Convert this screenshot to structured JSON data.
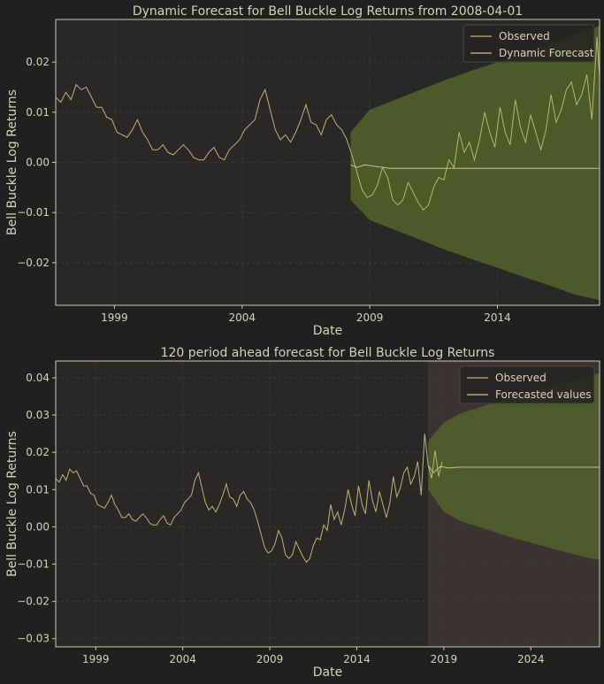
{
  "theme": {
    "background": "#1f2020",
    "axes_bg": "#2a2827",
    "text": "#d6d2b8",
    "grid": "#3f3c38",
    "spine": "#cfcab0",
    "observed_color": "#b8b478",
    "forecast_line_color": "#c8c296",
    "ci_color": "#586a2a",
    "ci_opacity": 0.75,
    "shade_color": "#3a3332"
  },
  "chart_data": [
    {
      "type": "line",
      "title": "Dynamic Forecast for Bell Buckle Log Returns from 2008-04-01",
      "xlabel": "Date",
      "ylabel": "Bell Buckle Log Returns",
      "xlim": [
        1996.7,
        2018.0
      ],
      "ylim": [
        -0.0285,
        0.0285
      ],
      "xticks": [
        1999,
        2004,
        2009,
        2014
      ],
      "xtick_labels": [
        "1999",
        "2004",
        "2009",
        "2014"
      ],
      "yticks": [
        -0.02,
        -0.01,
        0.0,
        0.01,
        0.02
      ],
      "ytick_labels": [
        "−0.02",
        "−0.01",
        "0.00",
        "0.01",
        "0.02"
      ],
      "grid": true,
      "legend_placement": "top-right",
      "legend": [
        "Observed",
        "Dynamic Forecast"
      ],
      "observed": {
        "name": "Observed",
        "points": [
          [
            1996.7,
            0.013
          ],
          [
            1996.9,
            0.012
          ],
          [
            1997.1,
            0.014
          ],
          [
            1997.3,
            0.0125
          ],
          [
            1997.5,
            0.0155
          ],
          [
            1997.7,
            0.0145
          ],
          [
            1997.9,
            0.015
          ],
          [
            1998.1,
            0.013
          ],
          [
            1998.3,
            0.011
          ],
          [
            1998.5,
            0.011
          ],
          [
            1998.7,
            0.009
          ],
          [
            1998.9,
            0.0085
          ],
          [
            1999.1,
            0.006
          ],
          [
            1999.3,
            0.0055
          ],
          [
            1999.5,
            0.005
          ],
          [
            1999.7,
            0.0065
          ],
          [
            1999.9,
            0.0085
          ],
          [
            2000.1,
            0.006
          ],
          [
            2000.3,
            0.0045
          ],
          [
            2000.5,
            0.0025
          ],
          [
            2000.7,
            0.0025
          ],
          [
            2000.9,
            0.0035
          ],
          [
            2001.1,
            0.002
          ],
          [
            2001.3,
            0.0015
          ],
          [
            2001.5,
            0.0025
          ],
          [
            2001.7,
            0.0035
          ],
          [
            2001.9,
            0.0025
          ],
          [
            2002.1,
            0.001
          ],
          [
            2002.3,
            0.0005
          ],
          [
            2002.5,
            0.0005
          ],
          [
            2002.7,
            0.002
          ],
          [
            2002.9,
            0.003
          ],
          [
            2003.1,
            0.001
          ],
          [
            2003.3,
            0.0005
          ],
          [
            2003.5,
            0.0025
          ],
          [
            2003.7,
            0.0035
          ],
          [
            2003.9,
            0.0045
          ],
          [
            2004.1,
            0.0065
          ],
          [
            2004.3,
            0.0075
          ],
          [
            2004.5,
            0.0085
          ],
          [
            2004.7,
            0.0125
          ],
          [
            2004.9,
            0.0145
          ],
          [
            2005.1,
            0.0105
          ],
          [
            2005.3,
            0.0065
          ],
          [
            2005.5,
            0.0045
          ],
          [
            2005.7,
            0.0055
          ],
          [
            2005.9,
            0.004
          ],
          [
            2006.1,
            0.006
          ],
          [
            2006.3,
            0.0085
          ],
          [
            2006.5,
            0.0115
          ],
          [
            2006.7,
            0.008
          ],
          [
            2006.9,
            0.0075
          ],
          [
            2007.1,
            0.0055
          ],
          [
            2007.3,
            0.0085
          ],
          [
            2007.5,
            0.0095
          ],
          [
            2007.7,
            0.0075
          ],
          [
            2007.9,
            0.0065
          ],
          [
            2008.1,
            0.0045
          ],
          [
            2008.3,
            0.0015
          ],
          [
            2008.5,
            -0.002
          ],
          [
            2008.7,
            -0.0055
          ],
          [
            2008.9,
            -0.007
          ],
          [
            2009.1,
            -0.0065
          ],
          [
            2009.3,
            -0.0045
          ],
          [
            2009.5,
            -0.001
          ],
          [
            2009.7,
            -0.003
          ],
          [
            2009.9,
            -0.0075
          ],
          [
            2010.1,
            -0.0085
          ],
          [
            2010.3,
            -0.0075
          ],
          [
            2010.5,
            -0.004
          ],
          [
            2010.7,
            -0.006
          ],
          [
            2010.9,
            -0.008
          ],
          [
            2011.1,
            -0.0095
          ],
          [
            2011.3,
            -0.0085
          ],
          [
            2011.5,
            -0.005
          ],
          [
            2011.7,
            -0.003
          ],
          [
            2011.9,
            -0.0035
          ],
          [
            2012.1,
            0.0005
          ],
          [
            2012.3,
            -0.001
          ],
          [
            2012.5,
            0.006
          ],
          [
            2012.7,
            0.002
          ],
          [
            2012.9,
            0.004
          ],
          [
            2013.1,
            0.0005
          ],
          [
            2013.3,
            0.0045
          ],
          [
            2013.5,
            0.01
          ],
          [
            2013.7,
            0.006
          ],
          [
            2013.9,
            0.003
          ],
          [
            2014.1,
            0.011
          ],
          [
            2014.3,
            0.006
          ],
          [
            2014.5,
            0.0035
          ],
          [
            2014.7,
            0.0125
          ],
          [
            2014.9,
            0.007
          ],
          [
            2015.1,
            0.004
          ],
          [
            2015.3,
            0.0095
          ],
          [
            2015.5,
            0.006
          ],
          [
            2015.7,
            0.0025
          ],
          [
            2015.9,
            0.0065
          ],
          [
            2016.1,
            0.0135
          ],
          [
            2016.3,
            0.008
          ],
          [
            2016.5,
            0.0105
          ],
          [
            2016.7,
            0.0145
          ],
          [
            2016.9,
            0.016
          ],
          [
            2017.1,
            0.0115
          ],
          [
            2017.3,
            0.0135
          ],
          [
            2017.5,
            0.0175
          ],
          [
            2017.7,
            0.0085
          ],
          [
            2017.9,
            0.025
          ],
          [
            2018.0,
            0.017
          ]
        ]
      },
      "forecast": {
        "name": "Dynamic Forecast",
        "start": 2008.25,
        "points": [
          [
            2008.25,
            -0.0005
          ],
          [
            2008.5,
            -0.001
          ],
          [
            2008.8,
            -0.0005
          ],
          [
            2009.2,
            -0.0008
          ],
          [
            2009.8,
            -0.0012
          ],
          [
            2010.5,
            -0.0012
          ],
          [
            2018.0,
            -0.0012
          ]
        ]
      },
      "confidence_interval": {
        "x": [
          2008.25,
          2009.0,
          2010.0,
          2011.0,
          2012.0,
          2013.0,
          2014.0,
          2015.0,
          2016.0,
          2017.0,
          2018.0
        ],
        "upper": [
          0.006,
          0.0105,
          0.0125,
          0.0145,
          0.0165,
          0.0183,
          0.02,
          0.0218,
          0.0235,
          0.0255,
          0.0272
        ],
        "lower": [
          -0.0075,
          -0.0115,
          -0.0135,
          -0.0155,
          -0.0175,
          -0.0193,
          -0.021,
          -0.0228,
          -0.0245,
          -0.0263,
          -0.0275
        ]
      }
    },
    {
      "type": "line",
      "title": "120 period ahead forecast for Bell Buckle Log Returns",
      "xlabel": "Date",
      "ylabel": "Bell Buckle Log Returns",
      "xlim": [
        1996.7,
        2027.95
      ],
      "ylim": [
        -0.0322,
        0.0445
      ],
      "xticks": [
        1999,
        2004,
        2009,
        2014,
        2019,
        2024
      ],
      "xtick_labels": [
        "1999",
        "2004",
        "2009",
        "2014",
        "2019",
        "2024"
      ],
      "yticks": [
        -0.03,
        -0.02,
        -0.01,
        0.0,
        0.01,
        0.02,
        0.03,
        0.04
      ],
      "ytick_labels": [
        "−0.03",
        "−0.02",
        "−0.01",
        "0.00",
        "0.01",
        "0.02",
        "0.03",
        "0.04"
      ],
      "grid": true,
      "legend_placement": "top-right",
      "legend": [
        "Observed",
        "Forecasted values"
      ],
      "shaded_region": [
        2018.1,
        2027.95
      ],
      "observed": {
        "name": "Observed",
        "points": [
          [
            1996.7,
            0.013
          ],
          [
            1996.9,
            0.012
          ],
          [
            1997.1,
            0.014
          ],
          [
            1997.3,
            0.0125
          ],
          [
            1997.5,
            0.0155
          ],
          [
            1997.7,
            0.0145
          ],
          [
            1997.9,
            0.015
          ],
          [
            1998.1,
            0.013
          ],
          [
            1998.3,
            0.011
          ],
          [
            1998.5,
            0.011
          ],
          [
            1998.7,
            0.009
          ],
          [
            1998.9,
            0.0085
          ],
          [
            1999.1,
            0.006
          ],
          [
            1999.3,
            0.0055
          ],
          [
            1999.5,
            0.005
          ],
          [
            1999.7,
            0.0065
          ],
          [
            1999.9,
            0.0085
          ],
          [
            2000.1,
            0.006
          ],
          [
            2000.3,
            0.0045
          ],
          [
            2000.5,
            0.0025
          ],
          [
            2000.7,
            0.0025
          ],
          [
            2000.9,
            0.0035
          ],
          [
            2001.1,
            0.002
          ],
          [
            2001.3,
            0.0015
          ],
          [
            2001.5,
            0.0025
          ],
          [
            2001.7,
            0.0035
          ],
          [
            2001.9,
            0.0025
          ],
          [
            2002.1,
            0.001
          ],
          [
            2002.3,
            0.0005
          ],
          [
            2002.5,
            0.0005
          ],
          [
            2002.7,
            0.002
          ],
          [
            2002.9,
            0.003
          ],
          [
            2003.1,
            0.001
          ],
          [
            2003.3,
            0.0005
          ],
          [
            2003.5,
            0.0025
          ],
          [
            2003.7,
            0.0035
          ],
          [
            2003.9,
            0.0045
          ],
          [
            2004.1,
            0.0065
          ],
          [
            2004.3,
            0.0075
          ],
          [
            2004.5,
            0.0085
          ],
          [
            2004.7,
            0.0125
          ],
          [
            2004.9,
            0.0145
          ],
          [
            2005.1,
            0.0105
          ],
          [
            2005.3,
            0.0065
          ],
          [
            2005.5,
            0.0045
          ],
          [
            2005.7,
            0.0055
          ],
          [
            2005.9,
            0.004
          ],
          [
            2006.1,
            0.006
          ],
          [
            2006.3,
            0.0085
          ],
          [
            2006.5,
            0.0115
          ],
          [
            2006.7,
            0.008
          ],
          [
            2006.9,
            0.0075
          ],
          [
            2007.1,
            0.0055
          ],
          [
            2007.3,
            0.0085
          ],
          [
            2007.5,
            0.0095
          ],
          [
            2007.7,
            0.0075
          ],
          [
            2007.9,
            0.0065
          ],
          [
            2008.1,
            0.0045
          ],
          [
            2008.3,
            0.0015
          ],
          [
            2008.5,
            -0.002
          ],
          [
            2008.7,
            -0.0055
          ],
          [
            2008.9,
            -0.007
          ],
          [
            2009.1,
            -0.0065
          ],
          [
            2009.3,
            -0.0045
          ],
          [
            2009.5,
            -0.001
          ],
          [
            2009.7,
            -0.003
          ],
          [
            2009.9,
            -0.0075
          ],
          [
            2010.1,
            -0.0085
          ],
          [
            2010.3,
            -0.0075
          ],
          [
            2010.5,
            -0.004
          ],
          [
            2010.7,
            -0.006
          ],
          [
            2010.9,
            -0.008
          ],
          [
            2011.1,
            -0.0095
          ],
          [
            2011.3,
            -0.0085
          ],
          [
            2011.5,
            -0.005
          ],
          [
            2011.7,
            -0.003
          ],
          [
            2011.9,
            -0.0035
          ],
          [
            2012.1,
            0.0005
          ],
          [
            2012.3,
            -0.001
          ],
          [
            2012.5,
            0.006
          ],
          [
            2012.7,
            0.002
          ],
          [
            2012.9,
            0.004
          ],
          [
            2013.1,
            0.0005
          ],
          [
            2013.3,
            0.0045
          ],
          [
            2013.5,
            0.01
          ],
          [
            2013.7,
            0.006
          ],
          [
            2013.9,
            0.003
          ],
          [
            2014.1,
            0.011
          ],
          [
            2014.3,
            0.006
          ],
          [
            2014.5,
            0.0035
          ],
          [
            2014.7,
            0.0125
          ],
          [
            2014.9,
            0.007
          ],
          [
            2015.1,
            0.004
          ],
          [
            2015.3,
            0.0095
          ],
          [
            2015.5,
            0.006
          ],
          [
            2015.7,
            0.0025
          ],
          [
            2015.9,
            0.0065
          ],
          [
            2016.1,
            0.0135
          ],
          [
            2016.3,
            0.008
          ],
          [
            2016.5,
            0.0105
          ],
          [
            2016.7,
            0.0145
          ],
          [
            2016.9,
            0.016
          ],
          [
            2017.1,
            0.0115
          ],
          [
            2017.3,
            0.0135
          ],
          [
            2017.5,
            0.0175
          ],
          [
            2017.7,
            0.0085
          ],
          [
            2017.9,
            0.025
          ],
          [
            2018.1,
            0.0165
          ],
          [
            2018.3,
            0.013
          ],
          [
            2018.5,
            0.0205
          ],
          [
            2018.7,
            0.0135
          ],
          [
            2018.9,
            0.0175
          ]
        ]
      },
      "forecast": {
        "name": "Forecasted values",
        "start": 2018.1,
        "points": [
          [
            2018.1,
            0.0165
          ],
          [
            2018.4,
            0.0145
          ],
          [
            2018.8,
            0.0162
          ],
          [
            2019.3,
            0.0158
          ],
          [
            2019.8,
            0.016
          ],
          [
            2020.5,
            0.016
          ],
          [
            2027.95,
            0.016
          ]
        ]
      },
      "confidence_interval": {
        "x": [
          2018.1,
          2019.0,
          2020.0,
          2021.0,
          2022.0,
          2023.0,
          2024.0,
          2025.0,
          2026.0,
          2027.0,
          2027.95
        ],
        "upper": [
          0.023,
          0.028,
          0.0305,
          0.032,
          0.0335,
          0.035,
          0.0362,
          0.0375,
          0.0388,
          0.04,
          0.0412
        ],
        "lower": [
          0.01,
          0.004,
          0.0015,
          0.0,
          -0.0015,
          -0.003,
          -0.0042,
          -0.0055,
          -0.0068,
          -0.008,
          -0.0088
        ]
      }
    }
  ]
}
